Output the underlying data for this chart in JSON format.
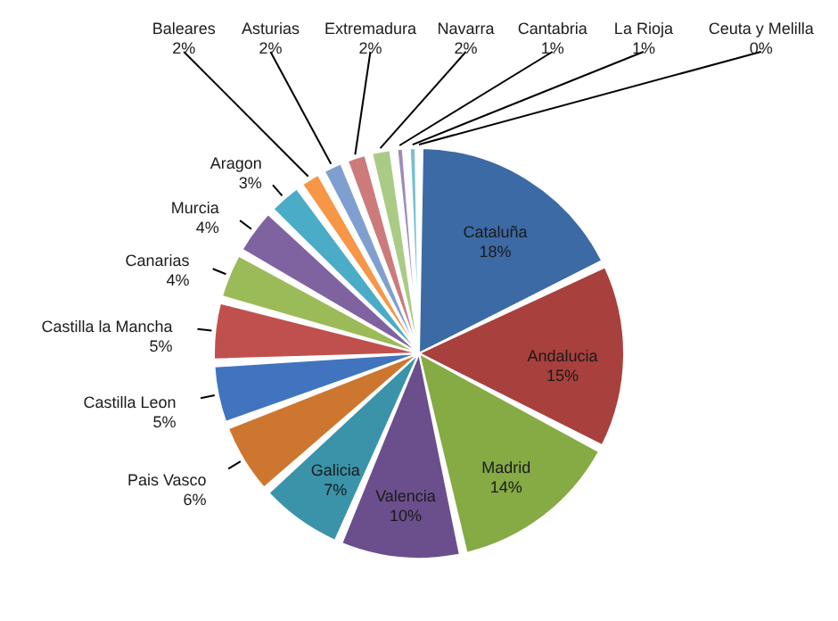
{
  "chart_data": {
    "type": "pie",
    "categories": [
      "Cataluña",
      "Andalucia",
      "Madrid",
      "Valencia",
      "Galicia",
      "Pais Vasco",
      "Castilla Leon",
      "Castilla la Mancha",
      "Canarias",
      "Murcia",
      "Aragon",
      "Baleares",
      "Asturias",
      "Extremadura",
      "Navarra",
      "Cantabria",
      "La Rioja",
      "Ceuta y Melilla"
    ],
    "values": [
      18,
      15,
      14,
      10,
      7,
      6,
      5,
      5,
      4,
      4,
      3,
      2,
      2,
      2,
      2,
      1,
      1,
      0
    ],
    "value_labels": [
      "18%",
      "15%",
      "14%",
      "10%",
      "7%",
      "6%",
      "5%",
      "5%",
      "4%",
      "4%",
      "3%",
      "2%",
      "2%",
      "2%",
      "2%",
      "1%",
      "1%",
      "0%"
    ],
    "colors": [
      "#3c6aa4",
      "#a8403d",
      "#86aa44",
      "#6a4f8c",
      "#3a93a9",
      "#cd7630",
      "#4174bf",
      "#c0504d",
      "#9bbb59",
      "#7f63a1",
      "#4aacc6",
      "#f79646",
      "#7f9fd0",
      "#cc7b7a",
      "#aacb85",
      "#9d8cba",
      "#79bfd2",
      "#f6b07a"
    ]
  }
}
